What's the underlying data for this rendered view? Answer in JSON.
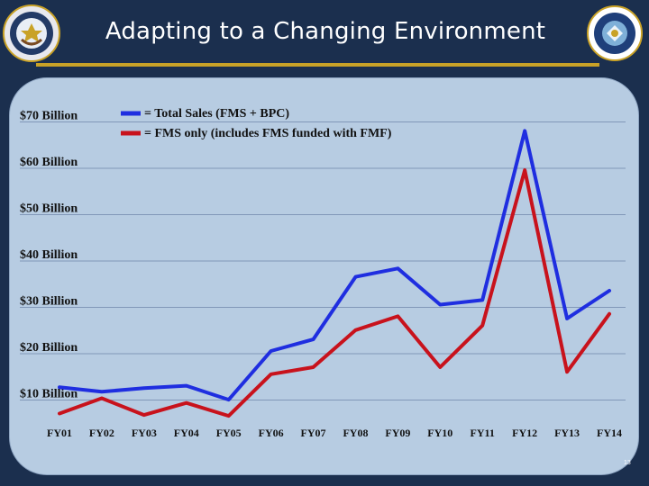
{
  "slide": {
    "title": "Adapting to a Changing Environment",
    "page_number": "13"
  },
  "colors": {
    "background": "#1b2f4e",
    "panel": "#b7cce2",
    "accent_gold": "#c9a227",
    "total_sales": "#1f2ee0",
    "fms_only": "#c8121c"
  },
  "chart_data": {
    "type": "line",
    "x": [
      "FY01",
      "FY02",
      "FY03",
      "FY04",
      "FY05",
      "FY06",
      "FY07",
      "FY08",
      "FY09",
      "FY10",
      "FY11",
      "FY12",
      "FY13",
      "FY14"
    ],
    "series": [
      {
        "name": "= Total Sales (FMS + BPC)",
        "color": "#1f2ee0",
        "values": [
          12.2,
          11.2,
          12.0,
          12.5,
          9.5,
          20.0,
          22.5,
          36.0,
          37.8,
          30.0,
          31.0,
          67.5,
          27.0,
          33.0
        ]
      },
      {
        "name": "= FMS only (includes FMS funded with FMF)",
        "color": "#c8121c",
        "values": [
          6.5,
          9.8,
          6.2,
          8.8,
          6.0,
          15.0,
          16.5,
          24.5,
          27.5,
          16.5,
          25.5,
          59.0,
          15.5,
          28.0
        ]
      }
    ],
    "yticks": [
      10,
      20,
      30,
      40,
      50,
      60,
      70
    ],
    "ytick_labels": [
      "$10 Billion",
      "$20 Billion",
      "$30 Billion",
      "$40 Billion",
      "$50 Billion",
      "$60 Billion",
      "$70 Billion"
    ],
    "ylim": [
      0,
      70
    ],
    "grid": true,
    "legend_position": "top"
  }
}
